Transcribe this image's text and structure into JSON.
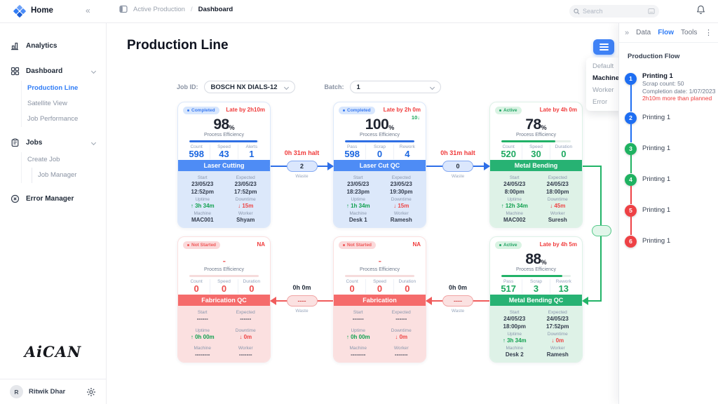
{
  "topbar": {
    "home": "Home",
    "collapse": "«",
    "breadcrumb_section": "Active Production",
    "breadcrumb_sep": "/",
    "breadcrumb_page": "Dashboard",
    "search_placeholder": "Search"
  },
  "sidebar": {
    "items": [
      {
        "label": "Analytics"
      },
      {
        "label": "Dashboard"
      },
      {
        "label": "Production Line",
        "active": true
      },
      {
        "label": "Satellite View"
      },
      {
        "label": "Job Performance"
      },
      {
        "label": "Jobs"
      },
      {
        "label": "Create Job"
      },
      {
        "label": "Job Manager"
      },
      {
        "label": "Error Manager"
      }
    ],
    "logo": "AiCAN",
    "user": {
      "initial": "R",
      "name": "Ritwik Dhar"
    }
  },
  "main": {
    "title": "Production Line",
    "job_id_label": "Job ID:",
    "job_id_value": "BOSCH NX DIALS-12",
    "batch_label": "Batch:",
    "batch_value": "1"
  },
  "card_labels": {
    "eff": "Process Efficiency",
    "start": "Start",
    "expected": "Expected",
    "uptime": "Uptime",
    "downtime": "Downtime",
    "machine": "Machine",
    "worker": "Worker"
  },
  "cards": [
    {
      "status": "Completed",
      "theme": "blue",
      "late": "Late by 2h10m",
      "extra": "",
      "efficiency": "98",
      "unit": "%",
      "bar": 98,
      "stats": [
        {
          "label": "Count",
          "value": "598"
        },
        {
          "label": "Speed",
          "value": "43"
        },
        {
          "label": "Alerts",
          "value": "1"
        }
      ],
      "title": "Laser Cutting",
      "start": [
        "23/05/23",
        "12:52pm"
      ],
      "expected": [
        "23/05/23",
        "17:52pm"
      ],
      "uptime": "3h 34m",
      "downtime": "15m",
      "machine": "MAC001",
      "worker": "Shyam"
    },
    {
      "status": "Completed",
      "theme": "blue",
      "late": "Late by 2h 0m",
      "extra": "10↓",
      "efficiency": "100",
      "unit": "%",
      "bar": 100,
      "stats": [
        {
          "label": "Pass",
          "value": "598"
        },
        {
          "label": "Scrap",
          "value": "0"
        },
        {
          "label": "Rework",
          "value": "4"
        }
      ],
      "title": "Laser Cut QC",
      "start": [
        "23/05/23",
        "18:23pm"
      ],
      "expected": [
        "23/05/23",
        "19:30pm"
      ],
      "uptime": "1h 34m",
      "downtime": "15m",
      "machine": "Desk 1",
      "worker": "Ramesh"
    },
    {
      "status": "Active",
      "theme": "green",
      "late": "Late by 4h 0m",
      "extra": "",
      "efficiency": "78",
      "unit": "%",
      "bar": 78,
      "stats": [
        {
          "label": "Count",
          "value": "520"
        },
        {
          "label": "Speed",
          "value": "30"
        },
        {
          "label": "Duration",
          "value": "0"
        }
      ],
      "title": "Metal Bending",
      "start": [
        "24/05/23",
        "8:00pm"
      ],
      "expected": [
        "24/05/23",
        "18:00pm"
      ],
      "uptime": "12h 34m",
      "downtime": "45m",
      "machine": "MAC002",
      "worker": "Suresh"
    },
    {
      "status": "Not Started",
      "theme": "red",
      "late": "NA",
      "extra": "",
      "efficiency": "-",
      "unit": "",
      "bar": 0,
      "stats": [
        {
          "label": "Count",
          "value": "0"
        },
        {
          "label": "Speed",
          "value": "0"
        },
        {
          "label": "Duration",
          "value": "0"
        }
      ],
      "title": "Fabrication QC",
      "start": [
        "------",
        ""
      ],
      "expected": [
        "------",
        ""
      ],
      "uptime": "0h 00m",
      "downtime": "0m",
      "machine": "--------",
      "worker": "-------"
    },
    {
      "status": "Not Started",
      "theme": "red",
      "late": "NA",
      "extra": "",
      "efficiency": "-",
      "unit": "",
      "bar": 0,
      "stats": [
        {
          "label": "Count",
          "value": "0"
        },
        {
          "label": "Speed",
          "value": "0"
        },
        {
          "label": "Duration",
          "value": "0"
        }
      ],
      "title": "Fabrication",
      "start": [
        "------",
        ""
      ],
      "expected": [
        "------",
        ""
      ],
      "uptime": "0h 00m",
      "downtime": "0m",
      "machine": "--------",
      "worker": "-------"
    },
    {
      "status": "Active",
      "theme": "green",
      "late": "Late by 4h 5m",
      "extra": "",
      "efficiency": "88",
      "unit": "%",
      "bar": 88,
      "stats": [
        {
          "label": "Pass",
          "value": "517"
        },
        {
          "label": "Scrap",
          "value": "3"
        },
        {
          "label": "Rework",
          "value": "13"
        }
      ],
      "title": "Metal Bending QC",
      "start": [
        "24/05/23",
        "18:00pm"
      ],
      "expected": [
        "24/05/23",
        "17:52pm"
      ],
      "uptime": "3h 34m",
      "downtime": "0m",
      "machine": "Desk 2",
      "worker": "Ramesh"
    }
  ],
  "connectors": [
    {
      "label": "0h 31m halt",
      "pill": "2",
      "sub": "Waste",
      "theme": "blue",
      "dir": "right"
    },
    {
      "label": "0h 31m halt",
      "pill": "0",
      "sub": "Waste",
      "theme": "blue",
      "dir": "right"
    },
    {
      "label": "0h 0m",
      "pill": "----",
      "sub": "Waste",
      "theme": "red",
      "dir": "left"
    },
    {
      "label": "0h 0m",
      "pill": "----",
      "sub": "Waste",
      "theme": "red",
      "dir": "left"
    }
  ],
  "overlay_menu": {
    "items": [
      "Default",
      "Machine",
      "Worker",
      "Error"
    ],
    "active": "Machine"
  },
  "panel": {
    "collapse": "»",
    "tabs": [
      "Data",
      "Flow",
      "Tools"
    ],
    "active_tab": "Flow",
    "menu_icon": "⋮",
    "heading": "Production Flow",
    "steps": [
      {
        "num": "1",
        "label": "Printing 1",
        "color": "blue",
        "line_after": "blue",
        "details": [
          "Scrap count: 50",
          "Completion date: 1/07/2023"
        ],
        "warning": "2h10m more than planned"
      },
      {
        "num": "2",
        "label": "Printing 1",
        "color": "blue",
        "line_after": "blue"
      },
      {
        "num": "3",
        "label": "Printing 1",
        "color": "green",
        "line_after": "green"
      },
      {
        "num": "4",
        "label": "Printing 1",
        "color": "green",
        "line_after": "red"
      },
      {
        "num": "5",
        "label": "Printing 1",
        "color": "red",
        "line_after": "red"
      },
      {
        "num": "6",
        "label": "Printing 1",
        "color": "red",
        "line_after": null
      }
    ]
  },
  "colors": {
    "primary": "#2F7CF6",
    "green": "#22B468",
    "red": "#F04B4B"
  }
}
